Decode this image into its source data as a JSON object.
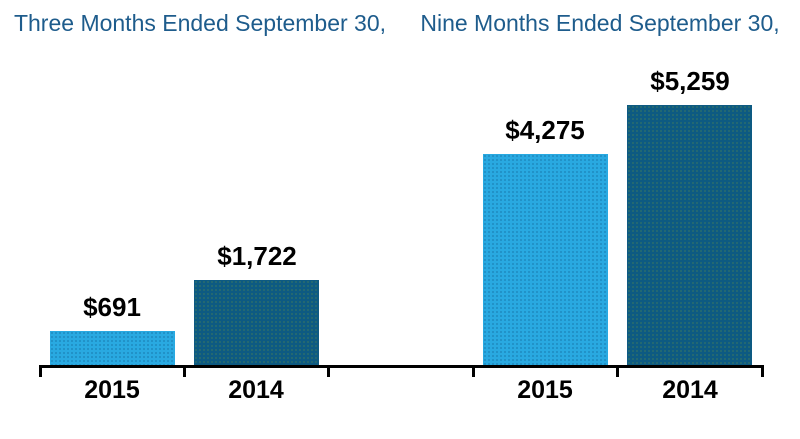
{
  "chart_data": {
    "type": "bar",
    "title": "",
    "groups": [
      {
        "header": "Three Months Ended September 30,",
        "bars": [
          {
            "category": "2015",
            "label": "$691",
            "value": 691,
            "color_key": "light"
          },
          {
            "category": "2014",
            "label": "$1,722",
            "value": 1722,
            "color_key": "dark"
          }
        ]
      },
      {
        "header": "Nine Months Ended September 30,",
        "bars": [
          {
            "category": "2015",
            "label": "$4,275",
            "value": 4275,
            "color_key": "light"
          },
          {
            "category": "2014",
            "label": "$5,259",
            "value": 5259,
            "color_key": "dark"
          }
        ]
      }
    ],
    "ylim": [
      0,
      5500
    ],
    "grid": false,
    "legend": "none",
    "colors": {
      "light": "#29A9E1",
      "dark": "#0D5A82",
      "header_text": "#1E5C8C",
      "axis": "#000000",
      "label_text": "#000000"
    }
  }
}
